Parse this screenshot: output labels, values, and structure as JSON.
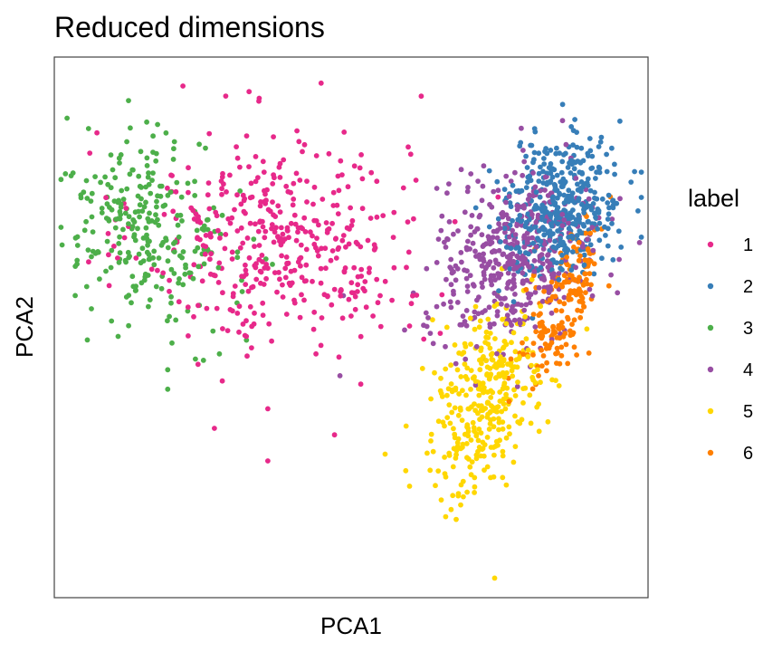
{
  "chart_data": {
    "type": "scatter",
    "title": "Reduced dimensions",
    "xlabel": "PCA1",
    "ylabel": "PCA2",
    "xlim": [
      -2.2,
      2.25
    ],
    "ylim": [
      -1.85,
      2.3
    ],
    "axis_ticks": false,
    "grid": false,
    "legend": {
      "title": "label",
      "placement": "right"
    },
    "series": [
      {
        "name": "1",
        "color": "#E7298A",
        "n": 420,
        "center": [
          -0.5,
          0.9
        ],
        "spread": [
          0.52,
          0.42
        ],
        "tilt": -0.15,
        "sample_points": [
          [
            -0.2,
            2.1
          ],
          [
            0.55,
            2.0
          ],
          [
            0.1,
            1.55
          ],
          [
            -0.9,
            0.2
          ],
          [
            -0.6,
            -0.4
          ],
          [
            -1.0,
            -0.55
          ],
          [
            -0.1,
            -0.6
          ],
          [
            -0.6,
            -0.8
          ]
        ]
      },
      {
        "name": "2",
        "color": "#377EB8",
        "n": 420,
        "center": [
          1.6,
          1.15
        ],
        "spread": [
          0.22,
          0.26
        ],
        "tilt": 0.2,
        "sample_points": [
          [
            1.4,
            1.75
          ],
          [
            1.75,
            1.6
          ],
          [
            2.0,
            1.4
          ],
          [
            1.95,
            0.85
          ],
          [
            1.5,
            0.95
          ]
        ]
      },
      {
        "name": "3",
        "color": "#4DAF4A",
        "n": 270,
        "center": [
          -1.5,
          0.95
        ],
        "spread": [
          0.3,
          0.36
        ],
        "tilt": -0.25,
        "sample_points": [
          [
            -2.0,
            1.22
          ],
          [
            -1.7,
            1.55
          ],
          [
            -1.3,
            1.65
          ],
          [
            -1.2,
            0.35
          ],
          [
            -1.35,
            -0.1
          ],
          [
            -1.35,
            -0.25
          ]
        ]
      },
      {
        "name": "4",
        "color": "#984EA3",
        "n": 440,
        "center": [
          1.25,
          0.75
        ],
        "spread": [
          0.3,
          0.32
        ],
        "tilt": 0.15,
        "sample_points": [
          [
            0.9,
            1.3
          ],
          [
            0.75,
            0.9
          ],
          [
            0.95,
            0.3
          ],
          [
            1.55,
            0.6
          ],
          [
            1.4,
            1.0
          ]
        ]
      },
      {
        "name": "5",
        "color": "#FFD700",
        "n": 330,
        "center": [
          1.02,
          -0.35
        ],
        "spread": [
          0.2,
          0.4
        ],
        "tilt": 0.25,
        "sample_points": [
          [
            0.95,
            -1.0
          ],
          [
            0.7,
            -1.1
          ],
          [
            1.1,
            -1.7
          ],
          [
            1.35,
            0.0
          ],
          [
            1.5,
            -0.5
          ]
        ]
      },
      {
        "name": "6",
        "color": "#FF7F00",
        "n": 180,
        "center": [
          1.6,
          0.4
        ],
        "spread": [
          0.12,
          0.32
        ],
        "tilt": 0.3,
        "sample_points": [
          [
            1.75,
            0.95
          ],
          [
            1.5,
            0.2
          ],
          [
            1.6,
            0.55
          ],
          [
            1.45,
            0.05
          ]
        ]
      }
    ]
  }
}
